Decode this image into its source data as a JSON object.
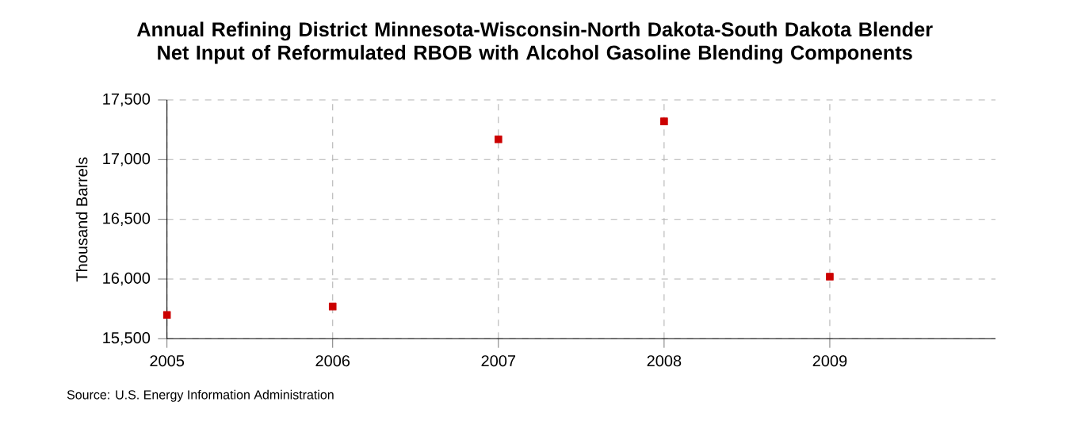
{
  "chart_data": {
    "type": "scatter",
    "title": "Annual Refining District Minnesota-Wisconsin-North Dakota-South Dakota Blender Net Input of Reformulated RBOB with Alcohol Gasoline Blending Components",
    "ylabel": "Thousand Barrels",
    "x": [
      2005,
      2006,
      2007,
      2008,
      2009
    ],
    "series": [
      {
        "color": "#cc0000",
        "values": [
          15700,
          15770,
          17170,
          17320,
          16020
        ]
      }
    ],
    "xlim": [
      2005,
      2010
    ],
    "xticks": [
      2005,
      2006,
      2007,
      2008,
      2009
    ],
    "ylim": [
      15500,
      17500
    ],
    "yticks": [
      {
        "value": 15500,
        "label": "15,500"
      },
      {
        "value": 16000,
        "label": "16,000"
      },
      {
        "value": 16500,
        "label": "16,500"
      },
      {
        "value": 17000,
        "label": "17,000"
      },
      {
        "value": 17500,
        "label": "17,500"
      }
    ],
    "grid": true,
    "marker": "square",
    "annotations": [
      "Source: U.S. Energy Information Administration"
    ]
  }
}
